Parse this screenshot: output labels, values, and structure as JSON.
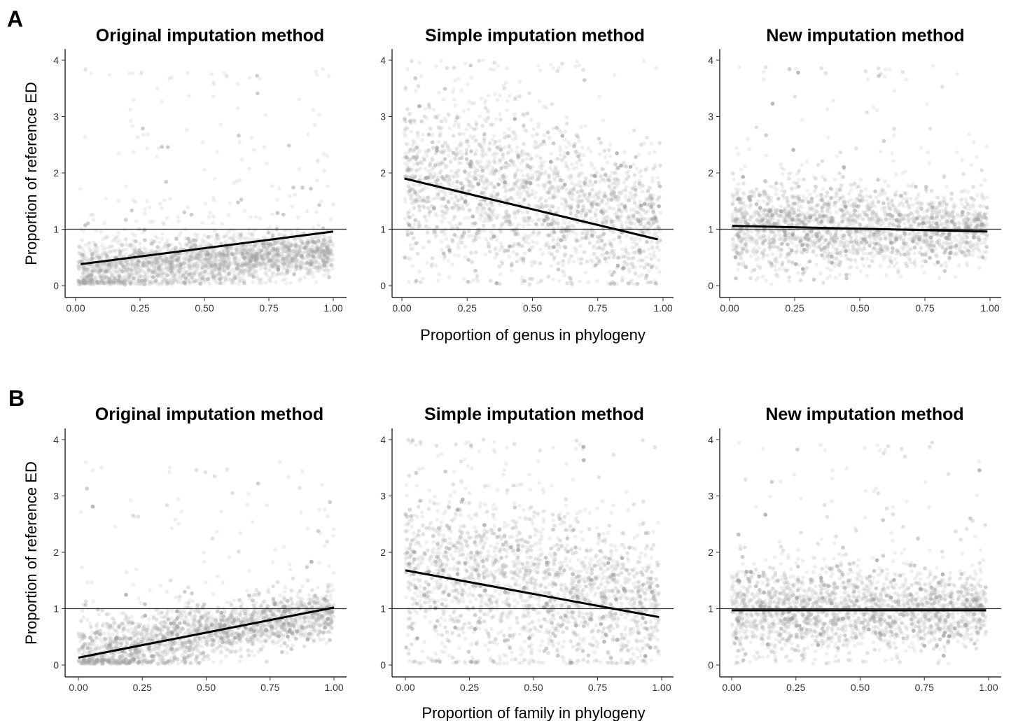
{
  "chart_data": [
    {
      "row": "A",
      "type": "scatter",
      "title": "Original imputation method",
      "xlabel": "Proportion of genus in phylogeny",
      "ylabel": "Proportion of reference ED",
      "xlim": [
        0,
        1
      ],
      "ylim": [
        0,
        4
      ],
      "xticks": [
        "0.00",
        "0.25",
        "0.50",
        "0.75",
        "1.00"
      ],
      "yticks": [
        "0",
        "1",
        "2",
        "3",
        "4"
      ],
      "reference_line_y": 1,
      "trend_line": {
        "x": [
          0.02,
          1.0
        ],
        "y": [
          0.38,
          0.96
        ]
      },
      "points": {
        "cloud_start": 0.25,
        "cloud_end": 0.6,
        "spread": 0.18,
        "max": 3.85,
        "x_from": 0.01,
        "x_to": 1.0
      }
    },
    {
      "row": "A",
      "type": "scatter",
      "title": "Simple imputation method",
      "xlabel": "Proportion of genus in phylogeny",
      "ylabel": "",
      "xlim": [
        0,
        1
      ],
      "ylim": [
        0,
        4
      ],
      "xticks": [
        "0.00",
        "0.25",
        "0.50",
        "0.75",
        "1.00"
      ],
      "yticks": [
        "0",
        "1",
        "2",
        "3",
        "4"
      ],
      "reference_line_y": 1,
      "trend_line": {
        "x": [
          0.01,
          0.98
        ],
        "y": [
          1.9,
          0.82
        ]
      },
      "points": {
        "cloud_start": 2.0,
        "cloud_end": 1.0,
        "spread": 0.55,
        "max": 4.0,
        "x_from": 0.01,
        "x_to": 0.99
      }
    },
    {
      "row": "A",
      "type": "scatter",
      "title": "New imputation method",
      "xlabel": "Proportion of genus in phylogeny",
      "ylabel": "",
      "xlim": [
        0,
        1
      ],
      "ylim": [
        0,
        4
      ],
      "xticks": [
        "0.00",
        "0.25",
        "0.50",
        "0.75",
        "1.00"
      ],
      "yticks": [
        "0",
        "1",
        "2",
        "3",
        "4"
      ],
      "reference_line_y": 1,
      "trend_line": {
        "x": [
          0.01,
          0.99
        ],
        "y": [
          1.06,
          0.96
        ]
      },
      "points": {
        "cloud_start": 1.05,
        "cloud_end": 1.0,
        "spread": 0.28,
        "max": 3.9,
        "x_from": 0.01,
        "x_to": 0.99
      }
    },
    {
      "row": "B",
      "type": "scatter",
      "title": "Original imputation method",
      "xlabel": "Proportion of family in phylogeny",
      "ylabel": "Proportion of reference ED",
      "xlim": [
        0,
        1
      ],
      "ylim": [
        0,
        4
      ],
      "xticks": [
        "0.00",
        "0.25",
        "0.50",
        "0.75",
        "1.00"
      ],
      "yticks": [
        "0",
        "1",
        "2",
        "3",
        "4"
      ],
      "reference_line_y": 1,
      "trend_line": {
        "x": [
          0.0,
          1.0
        ],
        "y": [
          0.13,
          1.02
        ]
      },
      "points": {
        "cloud_start": 0.15,
        "cloud_end": 0.95,
        "spread": 0.2,
        "max": 3.6,
        "x_from": 0.0,
        "x_to": 1.0
      }
    },
    {
      "row": "B",
      "type": "scatter",
      "title": "Simple imputation method",
      "xlabel": "Proportion of family in phylogeny",
      "ylabel": "",
      "xlim": [
        0,
        1
      ],
      "ylim": [
        0,
        4
      ],
      "xticks": [
        "0.00",
        "0.25",
        "0.50",
        "0.75",
        "1.00"
      ],
      "yticks": [
        "0",
        "1",
        "2",
        "3",
        "4"
      ],
      "reference_line_y": 1,
      "trend_line": {
        "x": [
          0.0,
          0.99
        ],
        "y": [
          1.68,
          0.85
        ]
      },
      "points": {
        "cloud_start": 1.7,
        "cloud_end": 1.0,
        "spread": 0.55,
        "max": 4.0,
        "x_from": 0.0,
        "x_to": 0.99
      }
    },
    {
      "row": "B",
      "type": "scatter",
      "title": "New imputation method",
      "xlabel": "Proportion of family in phylogeny",
      "ylabel": "",
      "xlim": [
        0,
        1
      ],
      "ylim": [
        0,
        4
      ],
      "xticks": [
        "0.00",
        "0.25",
        "0.50",
        "0.75",
        "1.00"
      ],
      "yticks": [
        "0",
        "1",
        "2",
        "3",
        "4"
      ],
      "reference_line_y": 1,
      "trend_line": {
        "x": [
          0.0,
          0.99
        ],
        "y": [
          0.97,
          0.97
        ]
      },
      "points": {
        "cloud_start": 0.97,
        "cloud_end": 0.97,
        "spread": 0.3,
        "max": 3.95,
        "x_from": 0.0,
        "x_to": 0.99
      }
    }
  ],
  "figure": {
    "row_labels": [
      "A",
      "B"
    ],
    "shared_x_titles": [
      "Proportion of genus in phylogeny",
      "Proportion of family in phylogeny"
    ],
    "colors": {
      "points": "#a6a6a6",
      "trend_line": "#000000",
      "reference_line": "#333333"
    }
  }
}
